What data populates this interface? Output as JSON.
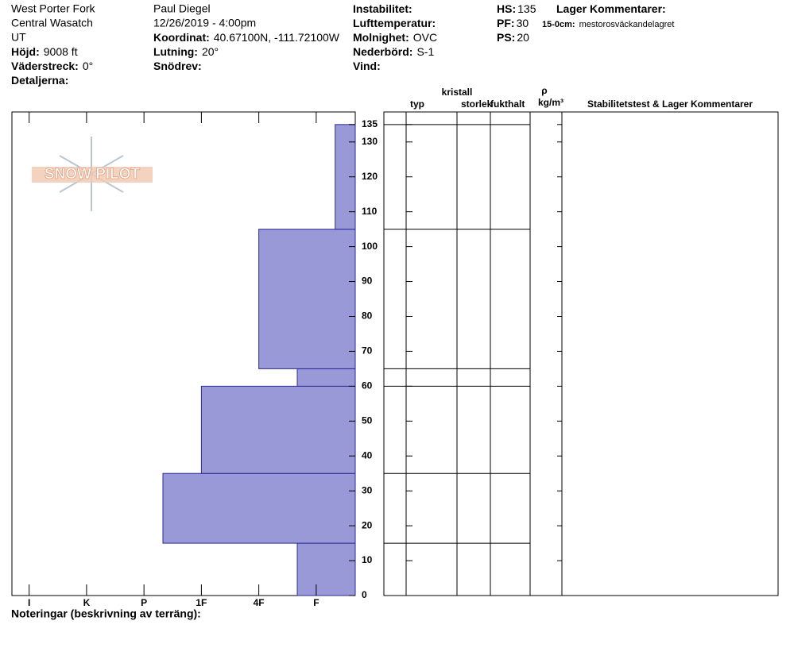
{
  "header": {
    "columns": [
      [
        "West Porter Fork",
        "Central Wasatch",
        "UT",
        {
          "label": "Höjd:",
          "value": "9008 ft"
        },
        {
          "label": "Väderstreck:",
          "value": "0°"
        },
        {
          "label": "Detaljerna:"
        }
      ],
      [
        "Paul Diegel",
        "12/26/2019 - 4:00pm",
        {
          "label": "Koordinat:",
          "value": "40.67100N, -111.72100W"
        },
        {
          "label": "Lutning:",
          "value": "20°"
        },
        {
          "label": "Snödrev:"
        }
      ],
      [
        {
          "label": "Instabilitet:"
        },
        {
          "label": "Lufttemperatur:"
        },
        {
          "label": "Molnighet:",
          "value": "OVC"
        },
        {
          "label": "Nederbörd:",
          "value": "S-1"
        },
        {
          "label": "Vind:"
        }
      ],
      [
        {
          "label": "HS:",
          "value": "135"
        },
        {
          "label": "PF:",
          "value": "30"
        },
        {
          "label": "PS:",
          "value": "20"
        }
      ],
      [
        {
          "label": "Lager Kommentarer:"
        },
        {
          "label": "15-0cm:",
          "value": "mestorosväckandelagret"
        }
      ]
    ]
  },
  "logo": "SNOW PILOT",
  "columns": {
    "crystal": "kristall",
    "type": "typ",
    "size": "storlek",
    "moisture": "fukthalt",
    "rho": "ρ",
    "density_unit": "kg/m³",
    "comments": "Stabilitetstest & Lager Kommentarer"
  },
  "notes": "Noteringar (beskrivning av terräng):",
  "chart_data": {
    "type": "hardness-profile",
    "xlim": [
      6.3,
      0.32
    ],
    "xticks": [
      {
        "value": 6,
        "label": "I"
      },
      {
        "value": 5,
        "label": "K"
      },
      {
        "value": 4,
        "label": "P"
      },
      {
        "value": 3,
        "label": "1F"
      },
      {
        "value": 2,
        "label": "4F"
      },
      {
        "value": 1,
        "label": "F"
      }
    ],
    "ylim": [
      0,
      138.6
    ],
    "yticks": [
      0,
      10,
      20,
      30,
      40,
      50,
      60,
      70,
      80,
      90,
      100,
      110,
      120,
      130,
      135
    ],
    "color": "#9999d8",
    "layers": [
      {
        "bottom": 0,
        "top": 15,
        "hardness": 1.33
      },
      {
        "bottom": 15,
        "top": 35,
        "hardness": 3.67
      },
      {
        "bottom": 35,
        "top": 60,
        "hardness": 3
      },
      {
        "bottom": 60,
        "top": 65,
        "hardness": 1.33
      },
      {
        "bottom": 65,
        "top": 105,
        "hardness": 2
      },
      {
        "bottom": 105,
        "top": 135,
        "hardness": 0.67
      }
    ]
  }
}
